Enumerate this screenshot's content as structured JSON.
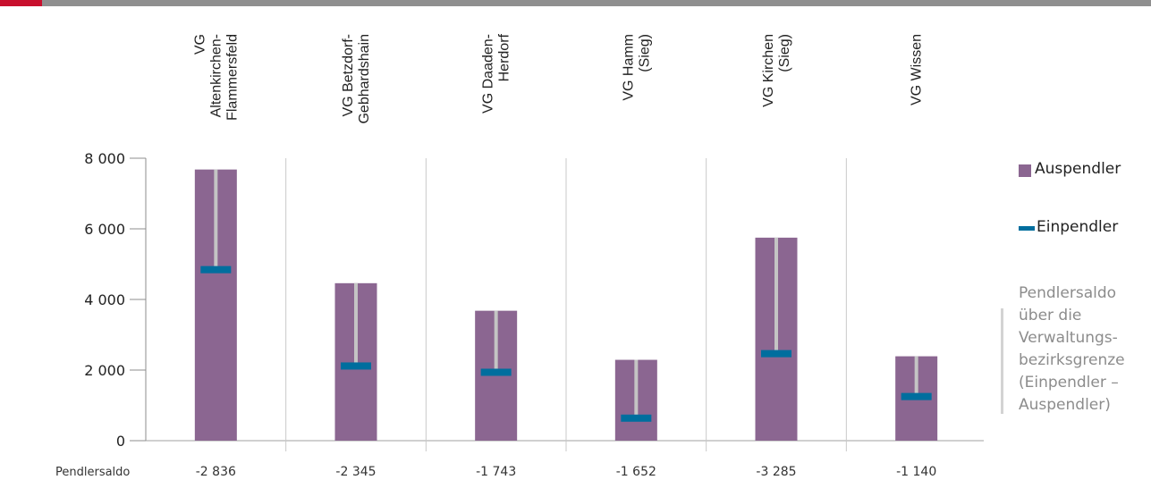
{
  "chart_data": {
    "type": "bar",
    "categories": [
      "VG\nAltenkirchen-\nFlammersfeld",
      "VG Betzdorf-\nGebhardshain",
      "VG Daaden-\nHerdorf",
      "VG Hamm\n(Sieg)",
      "VG Kirchen\n(Sieg)",
      "VG Wissen"
    ],
    "series": [
      {
        "name": "Auspendler",
        "type": "bar",
        "color": "#8b6691",
        "values": [
          7680,
          4460,
          3680,
          2290,
          5750,
          2390
        ]
      },
      {
        "name": "Einpendler",
        "type": "marker",
        "color": "#006e9e",
        "values": [
          4844,
          2115,
          1937,
          638,
          2465,
          1250
        ]
      }
    ],
    "ylim": [
      0,
      8000
    ],
    "yticks": [
      0,
      2000,
      4000,
      6000,
      8000
    ],
    "ytick_labels": [
      "0",
      "2 000",
      "4 000",
      "6 000",
      "8 000"
    ],
    "grid": "vertical separators and horizontal tick lines",
    "legend_position": "right",
    "pendlersaldo": {
      "label": "Pendlersaldo",
      "values": [
        "-2 836",
        "-2 345",
        "-1 743",
        "-1 652",
        "-3 285",
        "-1 140"
      ]
    },
    "connector_color": "#c4c4c4",
    "annotation": "Pendlersaldo\nüber die\nVerwaltungs-\nbezirksgrenze\n(Einpendler –\nAuspendler)"
  },
  "colors": {
    "accent": "#c8102e",
    "topbar": "#8f8f8f",
    "axis": "#8c8c8c"
  }
}
